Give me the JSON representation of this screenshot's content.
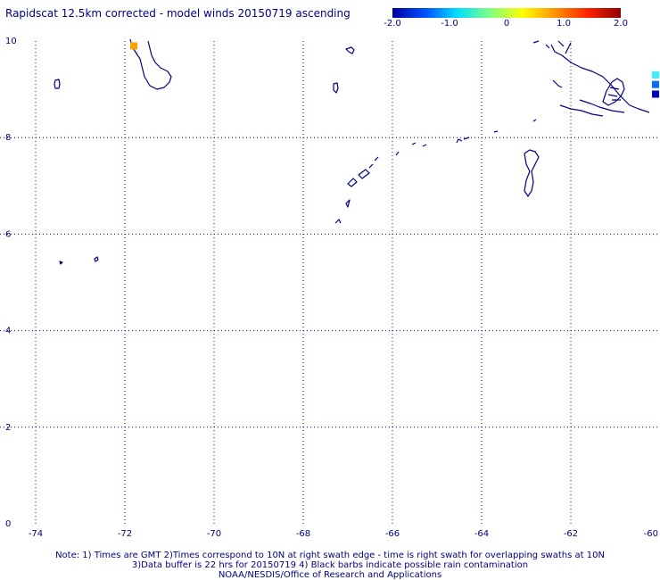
{
  "title": "Rapidscat 12.5km corrected - model winds 20150719 ascending",
  "colorbar": {
    "ticks": [
      "-2.0",
      "-1.0",
      "0",
      "1.0",
      "2.0"
    ],
    "tick_values": [
      -2.0,
      -1.0,
      0,
      1.0,
      2.0
    ],
    "range": [
      -2.0,
      2.0
    ],
    "colors": [
      "#0000a0",
      "#0050ff",
      "#00e0ff",
      "#80ff80",
      "#ffff00",
      "#ff9000",
      "#ff2000",
      "#900000"
    ]
  },
  "map": {
    "x_ticks": [
      "-74",
      "-72",
      "-70",
      "-68",
      "-66",
      "-64",
      "-62",
      "-60"
    ],
    "y_ticks": [
      "0",
      "2",
      "4",
      "6",
      "8",
      "10"
    ],
    "lon_range": [
      -74.8,
      -60
    ],
    "lat_range": [
      0,
      10
    ],
    "grid_color": "#0000a0",
    "coast_color": "#000080",
    "wind_cells": [
      {
        "lon": -71.8,
        "lat": 9.9,
        "value": 1.3,
        "color": "#ffa000"
      },
      {
        "lon": -60.1,
        "lat": 9.3,
        "value": -0.4,
        "color": "#40f0ff"
      },
      {
        "lon": -60.1,
        "lat": 9.1,
        "value": -1.3,
        "color": "#0070ff"
      },
      {
        "lon": -60.1,
        "lat": 8.9,
        "value": -2.0,
        "color": "#0000c0"
      }
    ]
  },
  "notes": [
    "Note: 1) Times are GMT 2)Times correspond to 10N at right swath edge - time is right swath for overlapping swaths at 10N",
    "3)Data buffer is 22 hrs for 20150719 4) Black barbs indicate possible rain contamination",
    "NOAA/NESDIS/Office of Research and Applications"
  ]
}
